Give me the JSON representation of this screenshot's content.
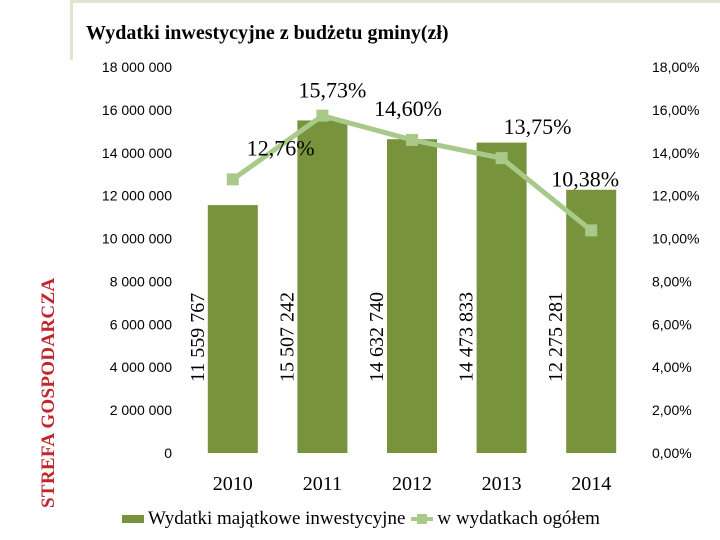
{
  "slide": {
    "side_title": "STREFA GOSPODARCZA"
  },
  "chart_data": {
    "type": "bar",
    "title": "Wydatki inwestycyjne z budżetu gminy(zł)",
    "categories": [
      "2010",
      "2011",
      "2012",
      "2013",
      "2014"
    ],
    "series": [
      {
        "name": "Wydatki majątkowe inwestycyjne",
        "type": "bar",
        "axis": "left",
        "values": [
          11559767,
          15507242,
          14632740,
          14473833,
          12275281
        ],
        "labels": [
          "11 559 767",
          "15 507 242",
          "14 632 740",
          "14 473 833",
          "12 275 281"
        ],
        "color": "#77933c"
      },
      {
        "name": "w wydatkach ogółem",
        "type": "line",
        "axis": "right",
        "values": [
          12.76,
          15.73,
          14.6,
          13.75,
          10.38
        ],
        "labels": [
          "12,76%",
          "15,73%",
          "14,60%",
          "13,75%",
          "10,38%"
        ],
        "color": "#a9c98a"
      }
    ],
    "ylim": [
      0,
      18000000
    ],
    "y_ticks": [
      "0",
      "2 000 000",
      "4 000 000",
      "6 000 000",
      "8 000 000",
      "10 000 000",
      "12 000 000",
      "14 000 000",
      "16 000 000",
      "18 000 000"
    ],
    "y2lim": [
      0,
      18
    ],
    "y2_ticks": [
      "0,00%",
      "2,00%",
      "4,00%",
      "6,00%",
      "8,00%",
      "10,00%",
      "12,00%",
      "14,00%",
      "16,00%",
      "18,00%"
    ],
    "grid": false,
    "legend": "bottom"
  }
}
